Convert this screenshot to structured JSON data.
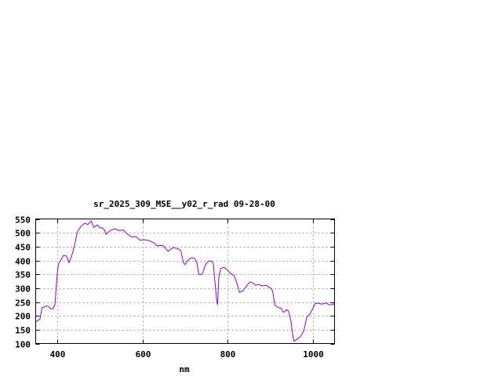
{
  "chart_data": {
    "type": "line",
    "title": "sr_2025_309_MSE__y02_r_rad 09-28-00",
    "xlabel": "nm",
    "ylabel": "",
    "xlim": [
      350,
      1050
    ],
    "ylim": [
      100,
      550
    ],
    "xticks": [
      400,
      600,
      800,
      1000
    ],
    "yticks": [
      100,
      150,
      200,
      250,
      300,
      350,
      400,
      450,
      500,
      550
    ],
    "grid": true,
    "line_color": "#9400d3",
    "series": [
      {
        "x": [
          350,
          360,
          365,
          370,
          375,
          380,
          385,
          390,
          395,
          400,
          403,
          410,
          415,
          422,
          428,
          435,
          442,
          447,
          455,
          465,
          472,
          480,
          486,
          495,
          500,
          505,
          510,
          515,
          525,
          535,
          545,
          555,
          565,
          575,
          585,
          595,
          605,
          615,
          625,
          635,
          648,
          660,
          672,
          682,
          690,
          696,
          700,
          706,
          715,
          722,
          728,
          732,
          740,
          748,
          755,
          762,
          766,
          770,
          774,
          776,
          779,
          783,
          790,
          798,
          806,
          815,
          823,
          827,
          835,
          845,
          852,
          860,
          865,
          872,
          880,
          890,
          900,
          905,
          910,
          918,
          925,
          930,
          938,
          942,
          948,
          952,
          955,
          962,
          970,
          978,
          985,
          992,
          1000,
          1005,
          1015,
          1020,
          1030,
          1037,
          1045,
          1050
        ],
        "y": [
          178,
          188,
          230,
          232,
          236,
          234,
          225,
          225,
          240,
          340,
          385,
          405,
          418,
          416,
          392,
          420,
          460,
          500,
          522,
          535,
          530,
          543,
          520,
          528,
          518,
          518,
          513,
          495,
          508,
          515,
          508,
          510,
          495,
          485,
          486,
          473,
          475,
          472,
          465,
          453,
          455,
          433,
          447,
          443,
          436,
          392,
          385,
          400,
          410,
          408,
          390,
          350,
          350,
          385,
          398,
          398,
          390,
          320,
          255,
          240,
          340,
          370,
          375,
          368,
          353,
          345,
          310,
          285,
          290,
          310,
          323,
          318,
          310,
          313,
          308,
          310,
          300,
          290,
          240,
          230,
          227,
          212,
          222,
          218,
          180,
          130,
          108,
          115,
          125,
          145,
          195,
          205,
          230,
          245,
          245,
          242,
          247,
          240,
          240,
          245
        ]
      }
    ]
  }
}
